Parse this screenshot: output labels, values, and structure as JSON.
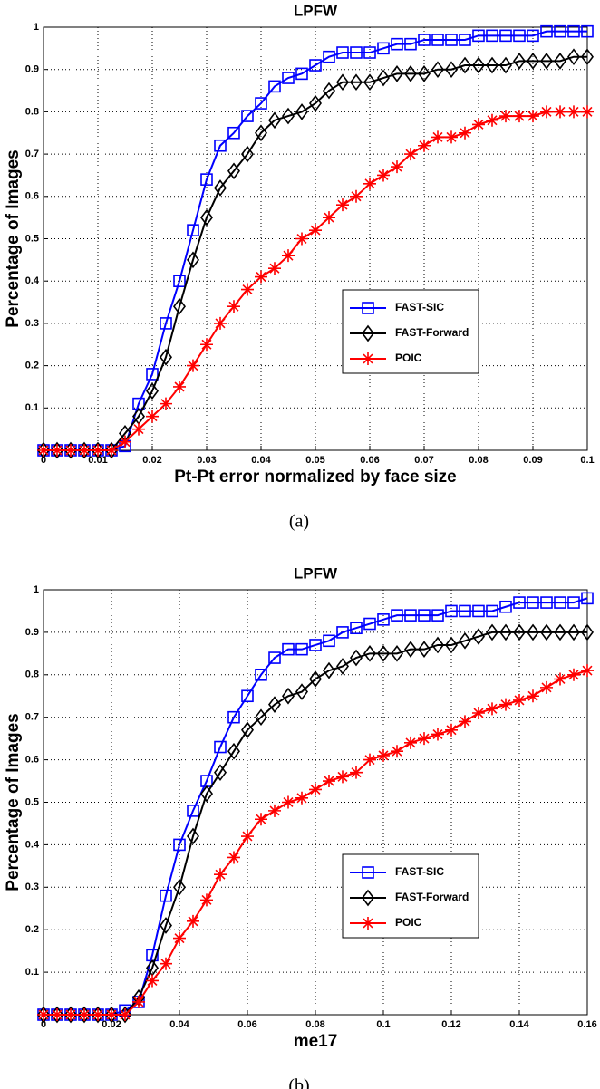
{
  "chart_data": [
    {
      "type": "line",
      "title": "LPFW",
      "xlabel": "Pt-Pt error normalized by face size",
      "ylabel": "Percentage of Images",
      "caption": "(a)",
      "x": [
        0,
        0.0025,
        0.005,
        0.0075,
        0.01,
        0.0125,
        0.015,
        0.0175,
        0.02,
        0.0225,
        0.025,
        0.0275,
        0.03,
        0.0325,
        0.035,
        0.0375,
        0.04,
        0.0425,
        0.045,
        0.0475,
        0.05,
        0.0525,
        0.055,
        0.0575,
        0.06,
        0.0625,
        0.065,
        0.0675,
        0.07,
        0.0725,
        0.075,
        0.0775,
        0.08,
        0.0825,
        0.085,
        0.0875,
        0.09,
        0.0925,
        0.095,
        0.0975,
        0.1
      ],
      "series": [
        {
          "name": "FAST-SIC",
          "color": "#0000ff",
          "marker": "square",
          "values": [
            0,
            0,
            0,
            0,
            0,
            0,
            0.01,
            0.11,
            0.18,
            0.3,
            0.4,
            0.52,
            0.64,
            0.72,
            0.75,
            0.79,
            0.82,
            0.86,
            0.88,
            0.89,
            0.91,
            0.93,
            0.94,
            0.94,
            0.94,
            0.95,
            0.96,
            0.96,
            0.97,
            0.97,
            0.97,
            0.97,
            0.98,
            0.98,
            0.98,
            0.98,
            0.98,
            0.99,
            0.99,
            0.99,
            0.99
          ]
        },
        {
          "name": "FAST-Forward",
          "color": "#000000",
          "marker": "diamond",
          "values": [
            0,
            0,
            0,
            0,
            0,
            0,
            0.04,
            0.08,
            0.14,
            0.22,
            0.34,
            0.45,
            0.55,
            0.62,
            0.66,
            0.7,
            0.75,
            0.78,
            0.79,
            0.8,
            0.82,
            0.85,
            0.87,
            0.87,
            0.87,
            0.88,
            0.89,
            0.89,
            0.89,
            0.9,
            0.9,
            0.91,
            0.91,
            0.91,
            0.91,
            0.92,
            0.92,
            0.92,
            0.92,
            0.93,
            0.93
          ]
        },
        {
          "name": "POIC",
          "color": "#ff0000",
          "marker": "asterisk",
          "values": [
            0,
            0,
            0,
            0,
            0,
            0,
            0.02,
            0.05,
            0.08,
            0.11,
            0.15,
            0.2,
            0.25,
            0.3,
            0.34,
            0.38,
            0.41,
            0.43,
            0.46,
            0.5,
            0.52,
            0.55,
            0.58,
            0.6,
            0.63,
            0.65,
            0.67,
            0.7,
            0.72,
            0.74,
            0.74,
            0.75,
            0.77,
            0.78,
            0.79,
            0.79,
            0.79,
            0.8,
            0.8,
            0.8,
            0.8
          ]
        }
      ],
      "xlim": [
        0,
        0.1
      ],
      "xticks": [
        0,
        0.01,
        0.02,
        0.03,
        0.04,
        0.05,
        0.06,
        0.07,
        0.08,
        0.09,
        0.1
      ],
      "ylim": [
        0,
        1
      ],
      "yticks": [
        0.1,
        0.2,
        0.3,
        0.4,
        0.5,
        0.6,
        0.7,
        0.8,
        0.9,
        1
      ],
      "grid": true,
      "legend_loc": "lower right"
    },
    {
      "type": "line",
      "title": "LPFW",
      "xlabel": "me17",
      "ylabel": "Percentage of Images",
      "caption": "(b)",
      "x": [
        0,
        0.004,
        0.008,
        0.012,
        0.016,
        0.02,
        0.024,
        0.028,
        0.032,
        0.036,
        0.04,
        0.044,
        0.048,
        0.052,
        0.056,
        0.06,
        0.064,
        0.068,
        0.072,
        0.076,
        0.08,
        0.084,
        0.088,
        0.092,
        0.096,
        0.1,
        0.104,
        0.108,
        0.112,
        0.116,
        0.12,
        0.124,
        0.128,
        0.132,
        0.136,
        0.14,
        0.144,
        0.148,
        0.152,
        0.156,
        0.16
      ],
      "series": [
        {
          "name": "FAST-SIC",
          "color": "#0000ff",
          "marker": "square",
          "values": [
            0,
            0,
            0,
            0,
            0,
            0,
            0.01,
            0.03,
            0.14,
            0.28,
            0.4,
            0.48,
            0.55,
            0.63,
            0.7,
            0.75,
            0.8,
            0.84,
            0.86,
            0.86,
            0.87,
            0.88,
            0.9,
            0.91,
            0.92,
            0.93,
            0.94,
            0.94,
            0.94,
            0.94,
            0.95,
            0.95,
            0.95,
            0.95,
            0.96,
            0.97,
            0.97,
            0.97,
            0.97,
            0.97,
            0.98
          ]
        },
        {
          "name": "FAST-Forward",
          "color": "#000000",
          "marker": "diamond",
          "values": [
            0,
            0,
            0,
            0,
            0,
            0,
            0,
            0.04,
            0.11,
            0.21,
            0.3,
            0.42,
            0.52,
            0.57,
            0.62,
            0.67,
            0.7,
            0.73,
            0.75,
            0.76,
            0.79,
            0.81,
            0.82,
            0.84,
            0.85,
            0.85,
            0.85,
            0.86,
            0.86,
            0.87,
            0.87,
            0.88,
            0.89,
            0.9,
            0.9,
            0.9,
            0.9,
            0.9,
            0.9,
            0.9,
            0.9
          ]
        },
        {
          "name": "POIC",
          "color": "#ff0000",
          "marker": "asterisk",
          "values": [
            0,
            0,
            0,
            0,
            0,
            0,
            0,
            0.03,
            0.08,
            0.12,
            0.18,
            0.22,
            0.27,
            0.33,
            0.37,
            0.42,
            0.46,
            0.48,
            0.5,
            0.51,
            0.53,
            0.55,
            0.56,
            0.57,
            0.6,
            0.61,
            0.62,
            0.64,
            0.65,
            0.66,
            0.67,
            0.69,
            0.71,
            0.72,
            0.73,
            0.74,
            0.75,
            0.77,
            0.79,
            0.8,
            0.81
          ]
        }
      ],
      "xlim": [
        0,
        0.16
      ],
      "xticks": [
        0,
        0.02,
        0.04,
        0.06,
        0.08,
        0.1,
        0.12,
        0.14,
        0.16
      ],
      "ylim": [
        0,
        1
      ],
      "yticks": [
        0.1,
        0.2,
        0.3,
        0.4,
        0.5,
        0.6,
        0.7,
        0.8,
        0.9,
        1
      ],
      "grid": true,
      "legend_loc": "lower right"
    }
  ]
}
